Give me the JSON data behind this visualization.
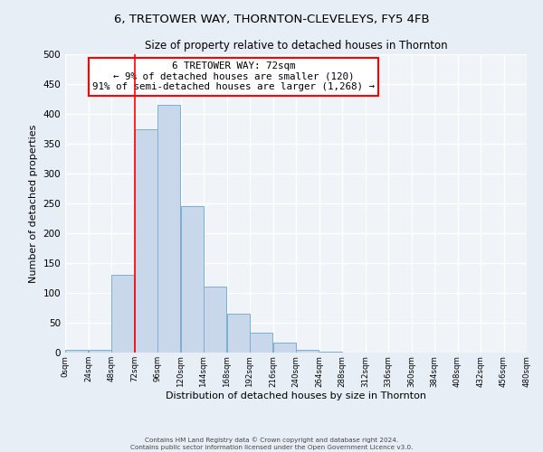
{
  "title": "6, TRETOWER WAY, THORNTON-CLEVELEYS, FY5 4FB",
  "subtitle": "Size of property relative to detached houses in Thornton",
  "xlabel": "Distribution of detached houses by size in Thornton",
  "ylabel": "Number of detached properties",
  "bar_edges": [
    0,
    24,
    48,
    72,
    96,
    120,
    144,
    168,
    192,
    216,
    240,
    264,
    288,
    312,
    336,
    360,
    384,
    408,
    432,
    456,
    480
  ],
  "bar_heights": [
    5,
    5,
    130,
    375,
    415,
    245,
    110,
    65,
    33,
    17,
    5,
    2,
    0,
    0,
    0,
    0,
    0,
    0,
    0,
    0
  ],
  "bar_color": "#c8d8ea",
  "bar_edge_color": "#7ab0d4",
  "vline_x": 72,
  "vline_color": "red",
  "annotation_line1": "6 TRETOWER WAY: 72sqm",
  "annotation_line2": "← 9% of detached houses are smaller (120)",
  "annotation_line3": "91% of semi-detached houses are larger (1,268) →",
  "annotation_box_color": "white",
  "annotation_box_edge": "red",
  "ylim": [
    0,
    500
  ],
  "xlim": [
    0,
    480
  ],
  "footer1": "Contains HM Land Registry data © Crown copyright and database right 2024.",
  "footer2": "Contains public sector information licensed under the Open Government Licence v3.0.",
  "bg_color": "#e8eef5",
  "plot_bg_color": "#f0f4f8",
  "grid_color": "white"
}
